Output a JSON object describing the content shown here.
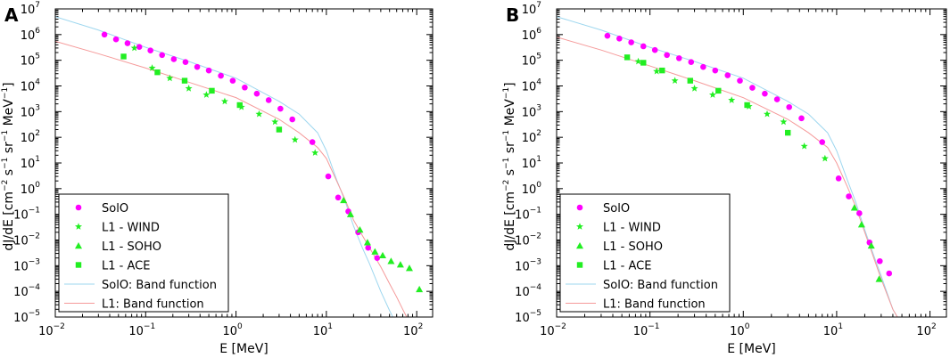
{
  "chart_data": [
    {
      "type": "scatter",
      "panel_label": "A",
      "xlabel": "E [MeV]",
      "ylabel_html": "dJ/dE [cm<tspan dy='-6' font-size='9'>−2</tspan><tspan dy='6'> s</tspan><tspan dy='-6' font-size='9'>−1</tspan><tspan dy='6'> sr</tspan><tspan dy='-6' font-size='9'>−1</tspan><tspan dy='6'> MeV</tspan><tspan dy='-6' font-size='9'>−1</tspan><tspan dy='6'>]</tspan>",
      "xscale": "log",
      "yscale": "log",
      "xlim": [
        0.01,
        150
      ],
      "ylim": [
        1e-05,
        10000000.0
      ],
      "legend_loc": "lower-left",
      "series": [
        {
          "name": "SolO",
          "marker": "circle",
          "color": "#ff00ff",
          "x": [
            0.035,
            0.047,
            0.063,
            0.085,
            0.113,
            0.152,
            0.205,
            0.276,
            0.372,
            0.5,
            0.68,
            0.92,
            1.25,
            1.7,
            2.3,
            3.1,
            4.2,
            7.0,
            10.5,
            13.5,
            17.5,
            22.5,
            29.0,
            36.5
          ],
          "y": [
            1000000.0,
            650000.0,
            460000.0,
            330000.0,
            240000.0,
            160000.0,
            110000.0,
            85000.0,
            55000.0,
            40000.0,
            25000.0,
            16000.0,
            8700.0,
            5000.0,
            2800.0,
            1300.0,
            500.0,
            65.0,
            3.0,
            0.45,
            0.13,
            0.02,
            0.005,
            0.002
          ]
        },
        {
          "name": "L1 - WIND",
          "marker": "star",
          "color": "#22ee22",
          "x": [
            0.075,
            0.118,
            0.185,
            0.3,
            0.47,
            0.75,
            1.15,
            1.8,
            2.7,
            4.5,
            7.5
          ],
          "y": [
            300000.0,
            50000.0,
            20000.0,
            8000.0,
            4500.0,
            2500.0,
            1500.0,
            800.0,
            400.0,
            80.0,
            25.0
          ]
        },
        {
          "name": "L1 - SOHO",
          "marker": "triangle",
          "color": "#22ee22",
          "x": [
            15.5,
            18.5,
            23.5,
            28.5,
            34.5,
            42.0,
            52.0,
            66.0,
            83.0,
            107.0
          ],
          "y": [
            0.35,
            0.1,
            0.025,
            0.008,
            0.0035,
            0.0025,
            0.0015,
            0.0011,
            0.0008,
            0.00012
          ]
        },
        {
          "name": "L1 - ACE",
          "marker": "square",
          "color": "#22ee22",
          "x": [
            0.057,
            0.135,
            0.27,
            0.54,
            1.1,
            3.0
          ],
          "y": [
            140000.0,
            34000.0,
            16000.0,
            6500.0,
            1800.0,
            200.0
          ]
        },
        {
          "name": "SolO: Band function",
          "marker": "line",
          "color": "#9ed7ef",
          "x": [
            0.01,
            0.03,
            0.1,
            0.3,
            1,
            3,
            5,
            8,
            10,
            13,
            16,
            20,
            25,
            30,
            40,
            50,
            60
          ],
          "y": [
            5000000.0,
            1500000.0,
            320000.0,
            90000.0,
            20000.0,
            2500,
            800,
            150,
            30,
            2.2,
            0.35,
            0.035,
            0.005,
            0.0012,
            0.0001,
            1.8e-05,
            5e-06
          ]
        },
        {
          "name": "L1: Band function",
          "marker": "line",
          "color": "#f59a9a",
          "x": [
            0.01,
            0.03,
            0.1,
            0.3,
            1,
            3,
            5,
            8,
            10,
            13,
            16,
            20,
            25,
            30,
            40,
            50,
            60,
            70,
            80
          ],
          "y": [
            550000.0,
            180000.0,
            50000.0,
            14000.0,
            3500.0,
            500,
            150,
            40,
            15,
            2,
            0.4,
            0.06,
            0.015,
            0.005,
            0.0009,
            0.0002,
            6e-05,
            2e-05,
            8e-06
          ]
        }
      ]
    },
    {
      "type": "scatter",
      "panel_label": "B",
      "xlabel": "E [MeV]",
      "ylabel_html": "dJ/dE [cm<tspan dy='-6' font-size='9'>−2</tspan><tspan dy='6'> s</tspan><tspan dy='-6' font-size='9'>−1</tspan><tspan dy='6'> sr</tspan><tspan dy='-6' font-size='9'>−1</tspan><tspan dy='6'> MeV</tspan><tspan dy='-6' font-size='9'>−1</tspan><tspan dy='6'>]</tspan>",
      "xscale": "log",
      "yscale": "log",
      "xlim": [
        0.01,
        150
      ],
      "ylim": [
        1e-05,
        10000000.0
      ],
      "legend_loc": "lower-left",
      "series": [
        {
          "name": "SolO",
          "marker": "circle",
          "color": "#ff00ff",
          "x": [
            0.035,
            0.047,
            0.063,
            0.085,
            0.113,
            0.152,
            0.205,
            0.276,
            0.372,
            0.5,
            0.68,
            0.92,
            1.25,
            1.7,
            2.3,
            3.1,
            4.2,
            7.0,
            10.5,
            13.5,
            17.5,
            22.5,
            29.0,
            36.5
          ],
          "y": [
            900000.0,
            700000.0,
            500000.0,
            350000.0,
            250000.0,
            160000.0,
            120000.0,
            85000.0,
            55000.0,
            40000.0,
            26000.0,
            16000.0,
            8500.0,
            5000.0,
            3000.0,
            1500.0,
            550.0,
            65.0,
            2.5,
            0.5,
            0.11,
            0.008,
            0.0015,
            0.0005
          ]
        },
        {
          "name": "L1 - WIND",
          "marker": "star",
          "color": "#22ee22",
          "x": [
            0.075,
            0.118,
            0.185,
            0.3,
            0.47,
            0.75,
            1.15,
            1.8,
            2.7,
            4.5,
            7.5
          ],
          "y": [
            90000.0,
            37000.0,
            16000.0,
            8000.0,
            4500.0,
            2800.0,
            1600.0,
            800.0,
            400.0,
            45.0,
            15.0
          ]
        },
        {
          "name": "L1 - SOHO",
          "marker": "triangle",
          "color": "#22ee22",
          "x": [
            15.5,
            18.5,
            23.5,
            28.5
          ],
          "y": [
            0.18,
            0.04,
            0.006,
            0.0003
          ]
        },
        {
          "name": "L1 - ACE",
          "marker": "square",
          "color": "#22ee22",
          "x": [
            0.057,
            0.085,
            0.135,
            0.27,
            0.54,
            1.1,
            3.0
          ],
          "y": [
            130000.0,
            80000.0,
            40000.0,
            16000.0,
            6500.0,
            1800.0,
            150.0
          ]
        },
        {
          "name": "SolO: Band function",
          "marker": "line",
          "color": "#9ed7ef",
          "x": [
            0.01,
            0.03,
            0.1,
            0.3,
            1,
            3,
            5,
            8,
            10,
            13,
            16,
            20,
            25,
            30,
            40,
            50
          ],
          "y": [
            5000000.0,
            1500000.0,
            320000.0,
            90000.0,
            20000.0,
            2500,
            800,
            150,
            30,
            2.2,
            0.3,
            0.025,
            0.0025,
            0.0004,
            2e-05,
            5e-06
          ]
        },
        {
          "name": "L1: Band function",
          "marker": "line",
          "color": "#f59a9a",
          "x": [
            0.01,
            0.03,
            0.1,
            0.3,
            1,
            3,
            5,
            8,
            10,
            13,
            16,
            20,
            25,
            30,
            40,
            50
          ],
          "y": [
            800000.0,
            250000.0,
            60000.0,
            16000.0,
            3500.0,
            500,
            150,
            40,
            10,
            1.2,
            0.2,
            0.02,
            0.002,
            0.0003,
            2e-05,
            5e-06
          ]
        }
      ]
    }
  ]
}
